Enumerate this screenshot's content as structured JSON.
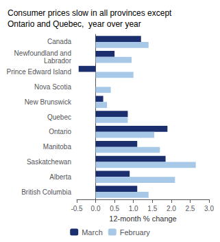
{
  "chart_data": {
    "type": "bar",
    "orientation": "horizontal",
    "title": "Consumer prices slow in all provinces except\nOntario and Quebec,  year over year",
    "categories": [
      "Canada",
      "Newfoundland and\nLabrador",
      "Prince Edward Island",
      "Nova Scotia",
      "New Brunswick",
      "Quebec",
      "Ontario",
      "Manitoba",
      "Saskatchewan",
      "Alberta",
      "British Columbia"
    ],
    "series": [
      {
        "name": "March",
        "color": "#1B2F6E",
        "values": [
          1.2,
          0.5,
          -0.45,
          0.0,
          0.2,
          0.85,
          1.9,
          1.1,
          1.85,
          0.9,
          1.1
        ]
      },
      {
        "name": "February",
        "color": "#A8C8E8",
        "values": [
          1.4,
          0.95,
          1.0,
          0.4,
          0.3,
          0.85,
          1.55,
          1.7,
          2.65,
          2.1,
          1.4
        ]
      }
    ],
    "xlabel": "12-month % change",
    "xlim": [
      -0.5,
      3.0
    ],
    "xticks": [
      -0.5,
      {
        "value": 0.0,
        "label": "0.0"
      },
      0.5,
      {
        "value": 1.0,
        "label": "1.0"
      },
      1.5,
      {
        "value": 2.0,
        "label": "2.0"
      },
      2.5,
      {
        "value": 3.0,
        "label": "3.0"
      }
    ],
    "grid": false,
    "legend": "bottom"
  }
}
